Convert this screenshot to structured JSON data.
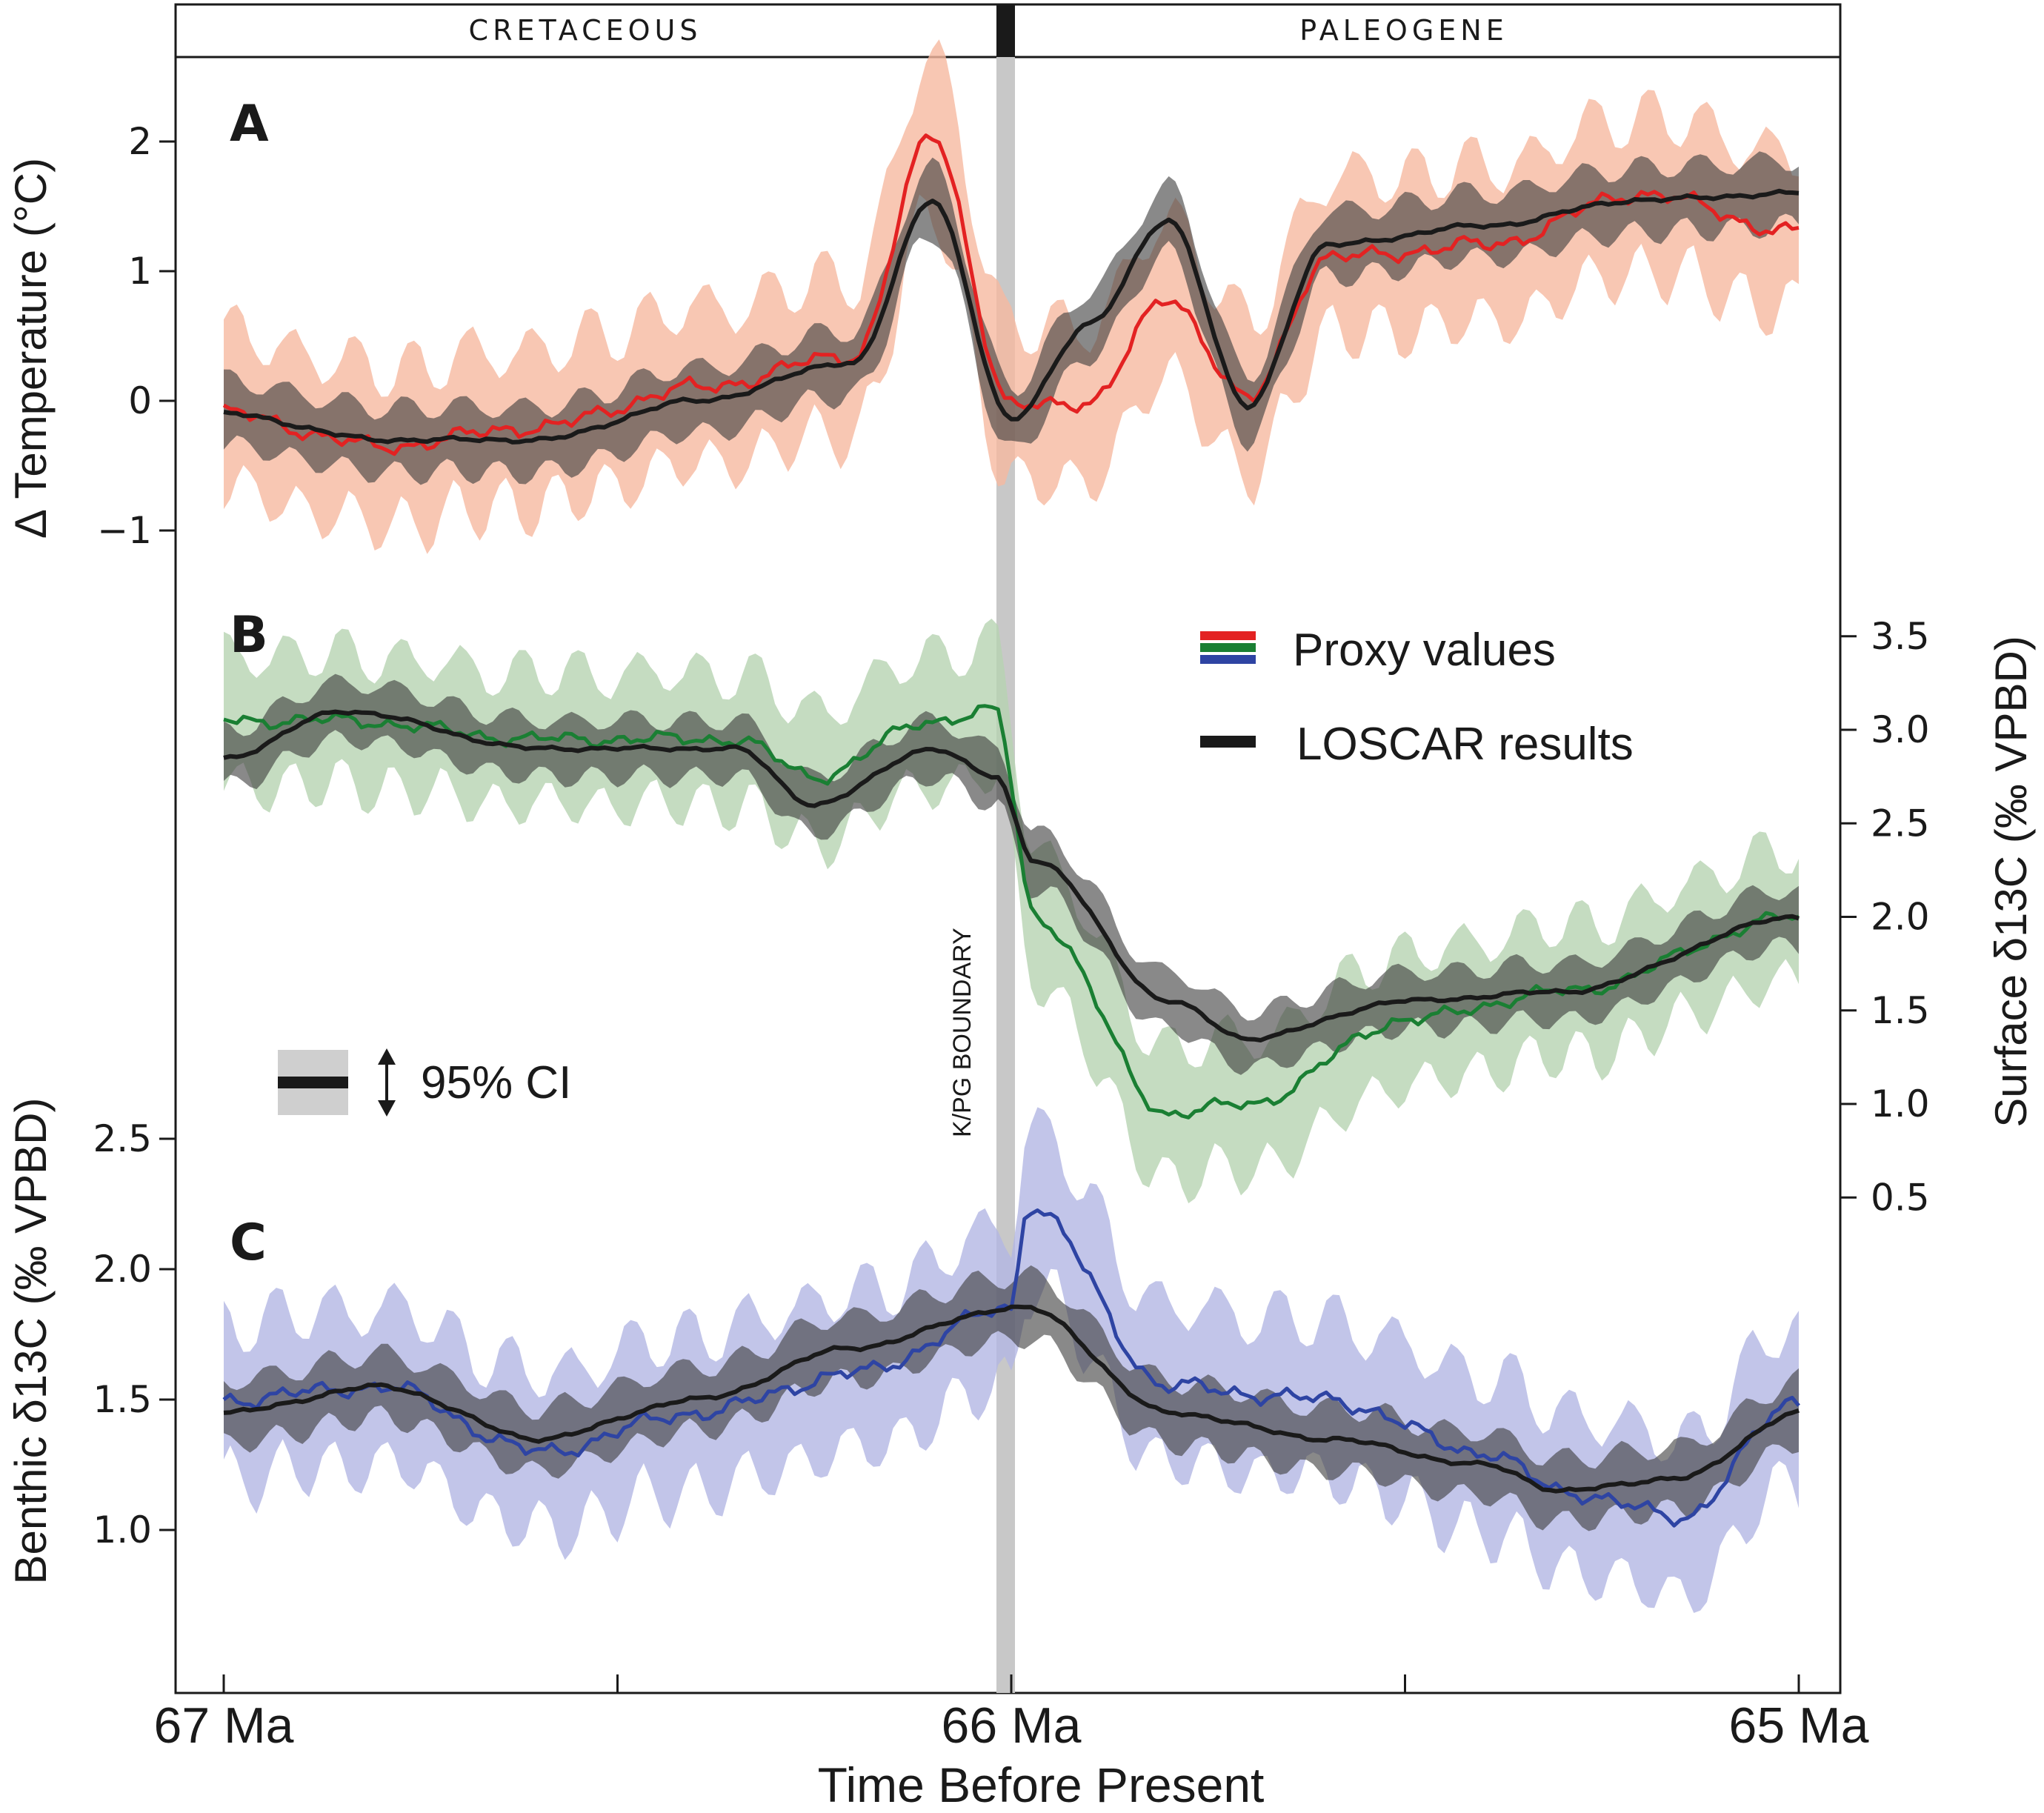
{
  "chart_data": {
    "type": "line",
    "xlabel": "Time Before Present",
    "x_ticks": [
      "67 Ma",
      "66 Ma",
      "65 Ma"
    ],
    "xlim": [
      67,
      65
    ],
    "eras": [
      "CRETACEOUS",
      "PALEOGENE"
    ],
    "boundary_label": "K/PG BOUNDARY",
    "boundary_x": 66.0,
    "legend": {
      "proxy": "Proxy values",
      "loscar": "LOSCAR results",
      "ci": "95% CI"
    },
    "colors": {
      "temp_proxy": "#e32222",
      "temp_band": "#f6b9a0",
      "surf_proxy": "#1a7f33",
      "surf_band": "#b7d3b2",
      "benth_proxy": "#2e44a3",
      "benth_band": "#b3b6e3",
      "loscar": "#1a1a1a",
      "loscar_band": "#3b3b3b",
      "boundary": "#c4c4c4"
    },
    "panels": [
      {
        "id": "A",
        "ylabel": "Δ Temperature (°C)",
        "yticks": [
          -1,
          0,
          1,
          2
        ],
        "ytick_labels": [
          "−1",
          "0",
          "1",
          "2"
        ],
        "x": [
          67.0,
          66.8,
          66.6,
          66.4,
          66.2,
          66.1,
          66.0,
          65.9,
          65.8,
          65.7,
          65.6,
          65.4,
          65.2,
          65.0
        ],
        "proxy": [
          -0.1,
          -0.35,
          -0.2,
          0.1,
          0.35,
          2.05,
          -0.05,
          0.0,
          0.8,
          0.0,
          1.1,
          1.2,
          1.6,
          1.3
        ],
        "loscar": [
          -0.1,
          -0.3,
          -0.3,
          0.0,
          0.3,
          1.55,
          -0.15,
          0.6,
          1.4,
          -0.05,
          1.2,
          1.35,
          1.55,
          1.6
        ],
        "proxy_ci": 0.6,
        "loscar_ci": 0.25
      },
      {
        "id": "B",
        "ylabel": "Surface δ13C (‰ VPBD)",
        "yticks": [
          0.5,
          1.0,
          1.5,
          2.0,
          2.5,
          3.0,
          3.5
        ],
        "ytick_labels": [
          "0.5",
          "1.0",
          "1.5",
          "2.0",
          "2.5",
          "3.0",
          "3.5"
        ],
        "x": [
          67.0,
          66.85,
          66.6,
          66.35,
          66.25,
          66.1,
          66.02,
          65.97,
          65.8,
          65.7,
          65.5,
          65.3,
          65.0
        ],
        "proxy": [
          3.05,
          3.05,
          2.95,
          2.95,
          2.75,
          3.05,
          3.1,
          2.0,
          0.95,
          1.0,
          1.45,
          1.6,
          2.0
        ],
        "loscar": [
          2.85,
          3.1,
          2.9,
          2.9,
          2.6,
          2.9,
          2.75,
          2.3,
          1.55,
          1.35,
          1.55,
          1.6,
          2.0
        ],
        "proxy_ci": 0.35,
        "loscar_ci": 0.15
      },
      {
        "id": "C",
        "ylabel": "Benthic δ13C (‰ VPBD)",
        "yticks": [
          1.0,
          1.5,
          2.0,
          2.5
        ],
        "ytick_labels": [
          "1.0",
          "1.5",
          "2.0",
          "2.5"
        ],
        "x": [
          67.0,
          66.8,
          66.6,
          66.4,
          66.2,
          66.0,
          65.98,
          65.8,
          65.6,
          65.4,
          65.3,
          65.15,
          65.0
        ],
        "proxy": [
          1.5,
          1.55,
          1.3,
          1.45,
          1.6,
          1.85,
          2.25,
          1.55,
          1.5,
          1.3,
          1.15,
          1.05,
          1.5
        ],
        "loscar": [
          1.45,
          1.55,
          1.35,
          1.5,
          1.7,
          1.85,
          1.85,
          1.45,
          1.35,
          1.25,
          1.15,
          1.2,
          1.45
        ],
        "proxy_ci": 0.3,
        "loscar_ci": 0.12
      }
    ]
  }
}
